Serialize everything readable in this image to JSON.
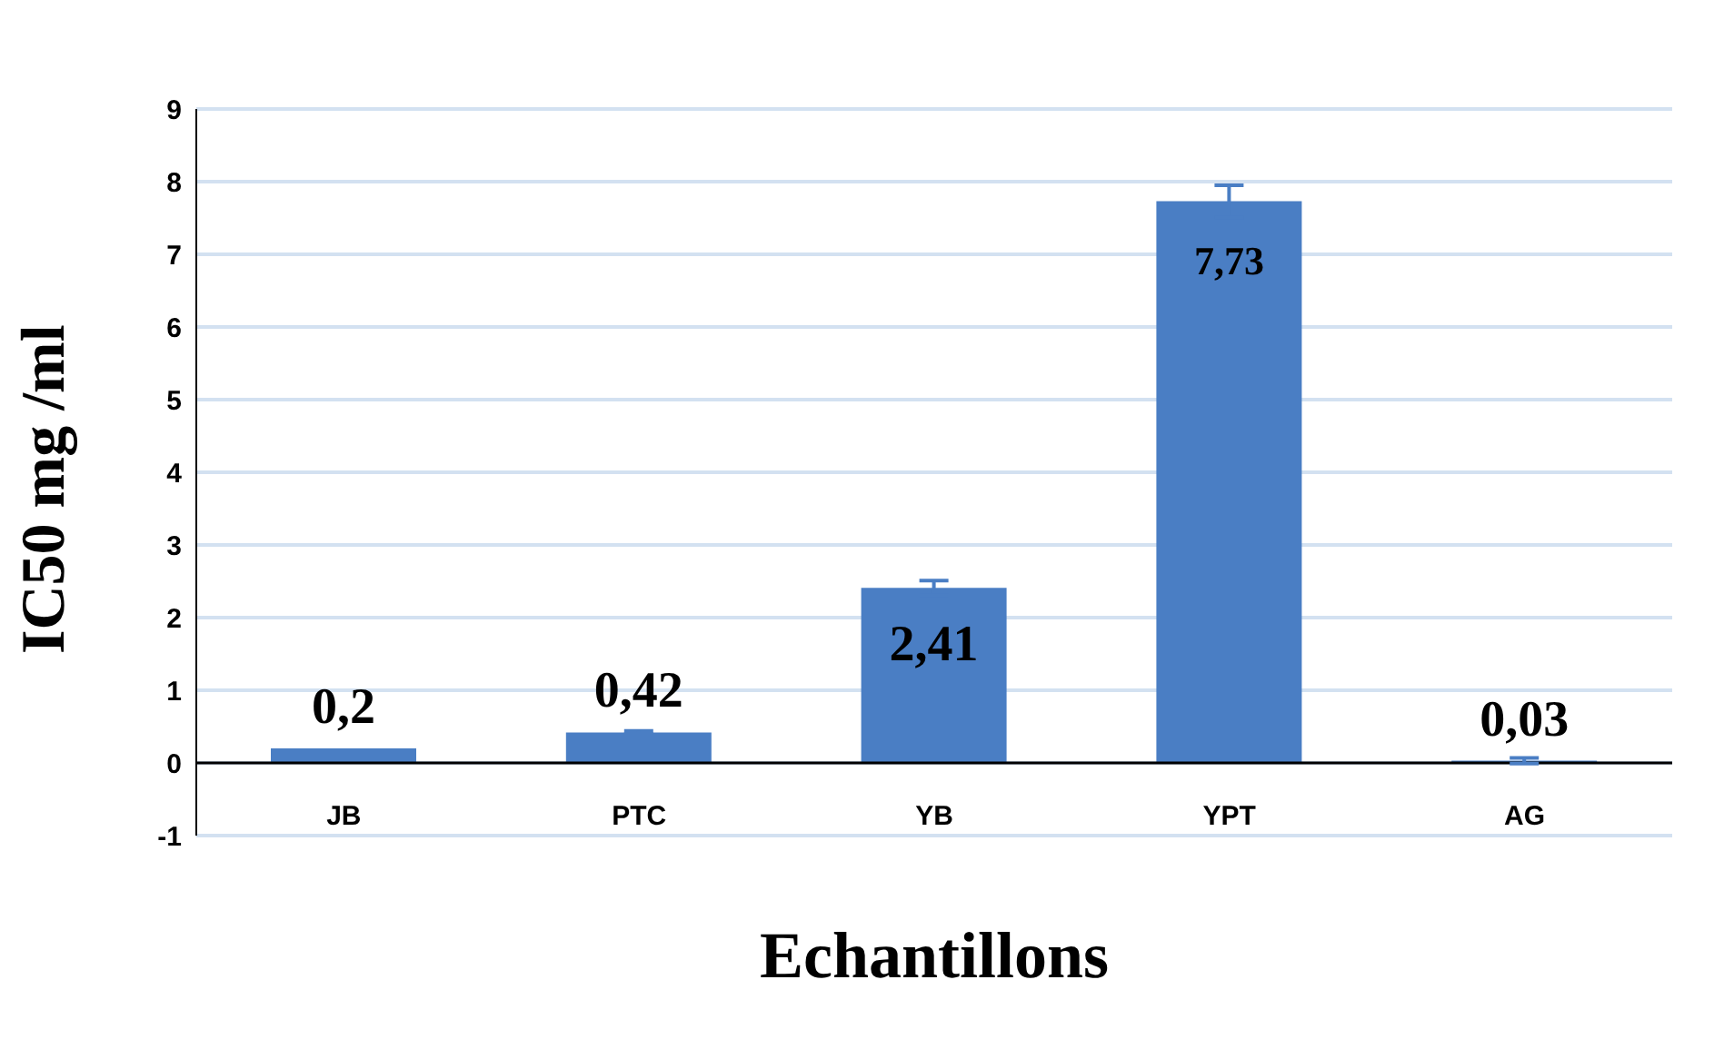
{
  "chart_data": {
    "type": "bar",
    "xlabel": "Echantillons",
    "ylabel": "IC50 mg /ml",
    "categories": [
      "JB",
      "PTC",
      "YB",
      "YPT",
      "AG"
    ],
    "values": [
      0.2,
      0.42,
      2.41,
      7.73,
      0.03
    ],
    "errors": [
      null,
      0.02,
      0.1,
      0.22,
      0.04
    ],
    "value_labels": [
      "0,2",
      "0,42",
      "2,41",
      "7,73",
      "0,03"
    ],
    "color": "#4a7ec4",
    "ylim": [
      -1,
      9
    ],
    "yticks": [
      -1,
      0,
      1,
      2,
      3,
      4,
      5,
      6,
      7,
      8,
      9
    ],
    "grid": "y"
  }
}
